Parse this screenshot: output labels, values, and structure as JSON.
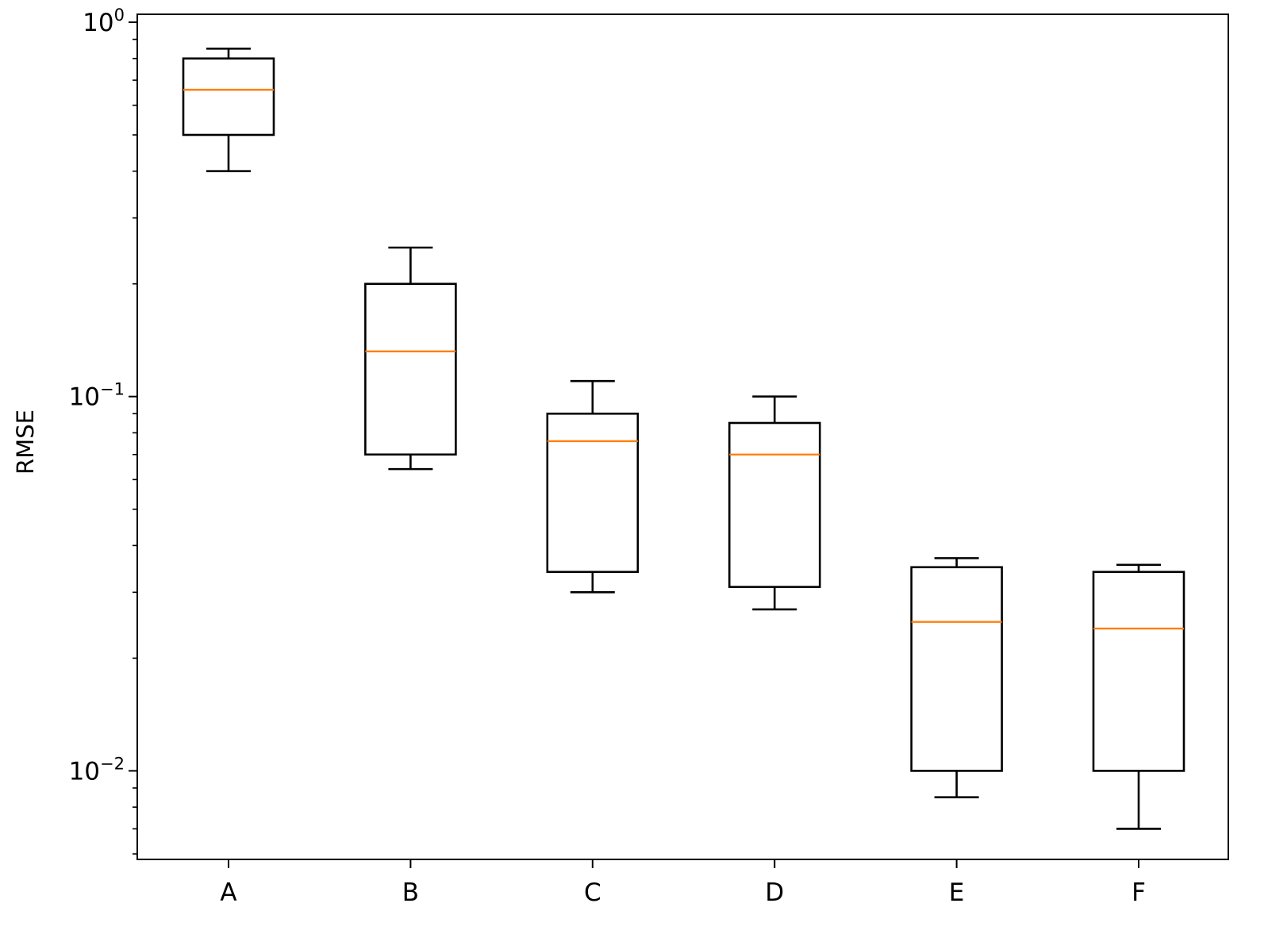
{
  "chart_data": {
    "type": "box",
    "ylabel": "RMSE",
    "yscale": "log",
    "ylim": [
      0.0058,
      1.05
    ],
    "yticks": [
      {
        "value": 1,
        "base": "10",
        "exp": "0"
      },
      {
        "value": 0.1,
        "base": "10",
        "exp": "−1"
      },
      {
        "value": 0.01,
        "base": "10",
        "exp": "−2"
      }
    ],
    "grid": false,
    "categories": [
      "A",
      "B",
      "C",
      "D",
      "E",
      "F"
    ],
    "boxes": [
      {
        "name": "A",
        "whisker_low": 0.4,
        "q1": 0.5,
        "median": 0.66,
        "q3": 0.8,
        "whisker_high": 0.85
      },
      {
        "name": "B",
        "whisker_low": 0.064,
        "q1": 0.07,
        "median": 0.132,
        "q3": 0.2,
        "whisker_high": 0.25
      },
      {
        "name": "C",
        "whisker_low": 0.03,
        "q1": 0.034,
        "median": 0.076,
        "q3": 0.09,
        "whisker_high": 0.11
      },
      {
        "name": "D",
        "whisker_low": 0.027,
        "q1": 0.031,
        "median": 0.07,
        "q3": 0.085,
        "whisker_high": 0.1
      },
      {
        "name": "E",
        "whisker_low": 0.0085,
        "q1": 0.01,
        "median": 0.025,
        "q3": 0.035,
        "whisker_high": 0.037
      },
      {
        "name": "F",
        "whisker_low": 0.007,
        "q1": 0.01,
        "median": 0.024,
        "q3": 0.034,
        "whisker_high": 0.0355
      }
    ],
    "colors": {
      "box": "#000000",
      "median": "#ff7f0e",
      "axes": "#000000"
    }
  }
}
